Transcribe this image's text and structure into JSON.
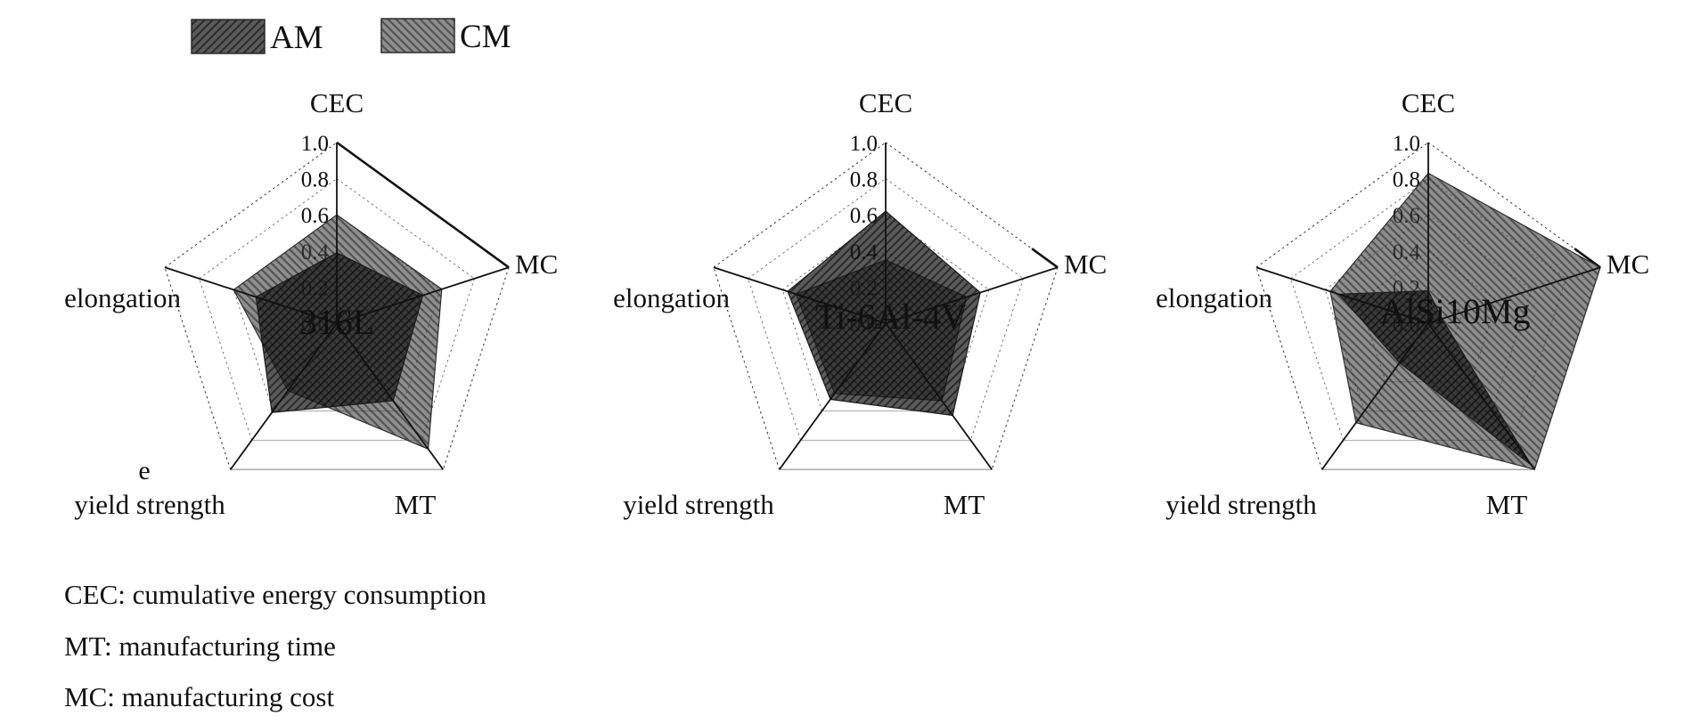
{
  "figure": {
    "background": "#ffffff",
    "accent_black": "#111111",
    "grid_gray": "#9a9a9a"
  },
  "legend": {
    "items": [
      {
        "label": "AM",
        "hatch": "/",
        "fill_hex": "#5c5c5c",
        "fill_rgba": "rgba(28,28,28,0.72)",
        "hatch_rgba": "rgba(0,0,0,0.50)"
      },
      {
        "label": "CM",
        "hatch": "\\",
        "fill_hex": "#8a8a8a",
        "fill_rgba": "rgba(72,72,72,0.62)",
        "hatch_rgba": "rgba(10,10,10,0.45)"
      }
    ]
  },
  "footnotes": {
    "lines": [
      "CEC: cumulative energy consumption",
      "MT: manufacturing time",
      "MC: manufacturing cost"
    ]
  },
  "chart_data": [
    {
      "type": "radar",
      "title": "316L",
      "axes": [
        "CEC",
        "MC",
        "MT",
        "yield strength",
        "elongation"
      ],
      "radial_range": [
        0,
        1
      ],
      "radial_ticks": [
        0.0,
        0.2,
        0.4,
        0.6,
        0.8,
        1.0
      ],
      "grid": true,
      "legend_position": "top-left-of-figure",
      "series": [
        {
          "name": "AM",
          "values": [
            0.39,
            0.5,
            0.53,
            0.61,
            0.47
          ]
        },
        {
          "name": "CM",
          "values": [
            0.6,
            0.61,
            0.86,
            0.46,
            0.6
          ]
        }
      ],
      "extra_labels": [
        {
          "text": "e",
          "x": 162,
          "y": 538
        }
      ]
    },
    {
      "type": "radar",
      "title": "Ti-6Al-4V",
      "axes": [
        "CEC",
        "MC",
        "MT",
        "yield strength",
        "elongation"
      ],
      "radial_range": [
        0,
        1
      ],
      "radial_ticks": [
        0.0,
        0.2,
        0.4,
        0.6,
        0.8,
        1.0
      ],
      "grid": true,
      "series": [
        {
          "name": "AM",
          "values": [
            0.62,
            0.55,
            0.63,
            0.52,
            0.57
          ]
        },
        {
          "name": "CM",
          "values": [
            0.35,
            0.47,
            0.53,
            0.48,
            0.52
          ]
        }
      ],
      "extra_labels": []
    },
    {
      "type": "radar",
      "title": "AlSi10Mg",
      "axes": [
        "CEC",
        "MC",
        "MT",
        "yield strength",
        "elongation"
      ],
      "radial_range": [
        0,
        1
      ],
      "radial_ticks": [
        0.0,
        0.2,
        0.4,
        0.6,
        0.8,
        1.0
      ],
      "grid": true,
      "series": [
        {
          "name": "AM",
          "values": [
            0.18,
            0.08,
            0.97,
            0.27,
            0.52
          ]
        },
        {
          "name": "CM",
          "values": [
            0.83,
            1.0,
            1.0,
            0.68,
            0.57
          ]
        }
      ],
      "extra_labels": []
    }
  ]
}
